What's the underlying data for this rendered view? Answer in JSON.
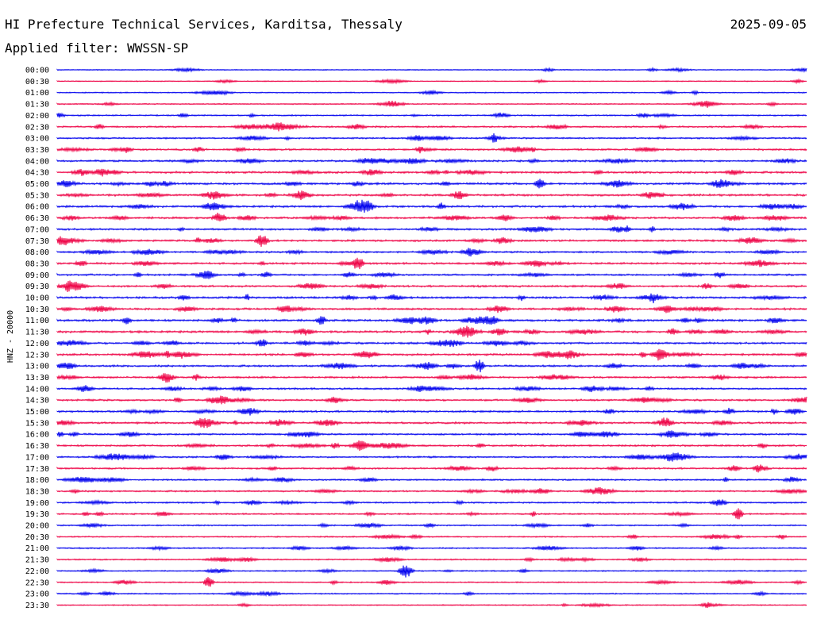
{
  "chart_data": {
    "type": "line",
    "title": "HI Prefecture Technical Services, Karditsa, Thessaly",
    "date": "2025-09-05",
    "subtitle": "Applied filter: WWSSN-SP",
    "ylabel": "HNZ - 20000",
    "xlabel": "",
    "grid": false,
    "legend": "none",
    "colors": {
      "even_trace": "#0000ee",
      "odd_trace": "#ee0044",
      "text": "#000000"
    },
    "row_labels": [
      "00:00",
      "00:30",
      "01:00",
      "01:30",
      "02:00",
      "02:30",
      "03:00",
      "03:30",
      "04:00",
      "04:30",
      "05:00",
      "05:30",
      "06:00",
      "06:30",
      "07:00",
      "07:30",
      "08:00",
      "08:30",
      "09:00",
      "09:30",
      "10:00",
      "10:30",
      "11:00",
      "11:30",
      "12:00",
      "12:30",
      "13:00",
      "13:30",
      "14:00",
      "14:30",
      "15:00",
      "15:30",
      "16:00",
      "16:30",
      "17:00",
      "17:30",
      "18:00",
      "18:30",
      "19:00",
      "19:30",
      "20:00",
      "20:30",
      "21:00",
      "21:30",
      "22:00",
      "22:30",
      "23:00",
      "23:30"
    ],
    "activity": [
      0.15,
      0.12,
      0.2,
      0.25,
      0.3,
      0.45,
      0.4,
      0.5,
      0.55,
      0.6,
      0.65,
      0.6,
      0.6,
      0.6,
      0.55,
      0.55,
      0.5,
      0.55,
      0.5,
      0.55,
      0.6,
      0.6,
      0.65,
      0.65,
      0.6,
      0.6,
      0.55,
      0.55,
      0.5,
      0.5,
      0.55,
      0.55,
      0.5,
      0.5,
      0.45,
      0.45,
      0.4,
      0.4,
      0.4,
      0.35,
      0.3,
      0.3,
      0.3,
      0.3,
      0.25,
      0.25,
      0.25,
      0.2
    ]
  }
}
